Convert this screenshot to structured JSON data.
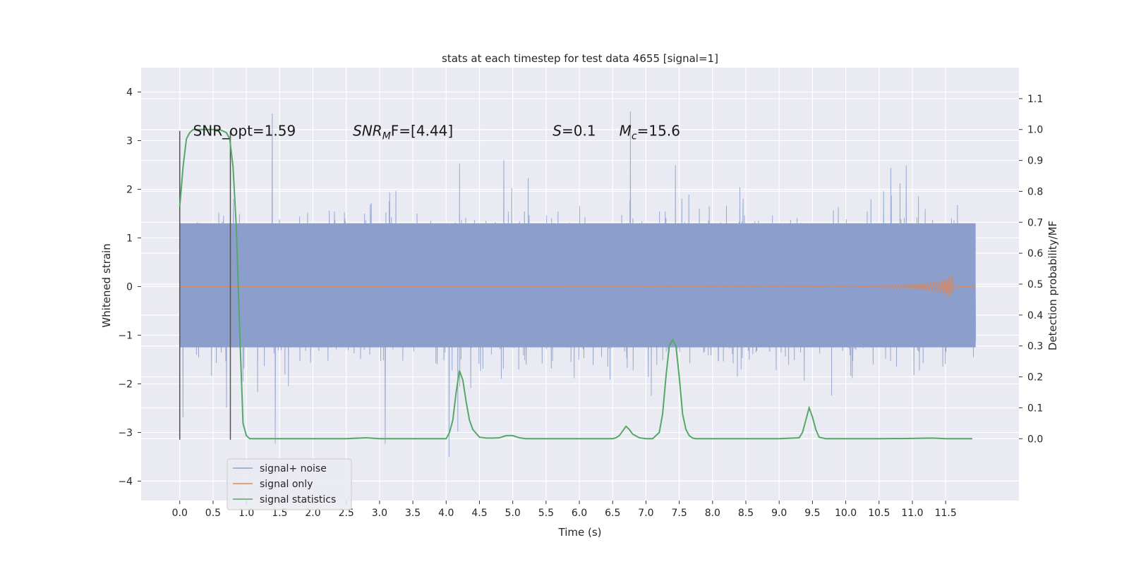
{
  "chart_data": {
    "type": "line",
    "title": "stats at each timestep for test data 4655 [signal=1]",
    "xlabel": "Time (s)",
    "ylabel_left": "Whitened strain",
    "ylabel_right": "Detection probability/MF",
    "xlim": [
      -0.58,
      12.6
    ],
    "ylim_left": [
      -4.4,
      4.5
    ],
    "ylim_right": [
      -0.2,
      1.2
    ],
    "x_ticks": [
      0.0,
      0.5,
      1.0,
      1.5,
      2.0,
      2.5,
      3.0,
      3.5,
      4.0,
      4.5,
      5.0,
      5.5,
      6.0,
      6.5,
      7.0,
      7.5,
      8.0,
      8.5,
      9.0,
      9.5,
      10.0,
      10.5,
      11.0,
      11.5
    ],
    "x_tick_labels": [
      "0.0",
      "0.5",
      "1.0",
      "1.5",
      "2.0",
      "2.5",
      "3.0",
      "3.5",
      "4.0",
      "4.5",
      "5.0",
      "5.5",
      "6.0",
      "6.5",
      "7.0",
      "7.5",
      "8.0",
      "8.5",
      "9.0",
      "9.5",
      "10.0",
      "10.5",
      "11.0",
      "11.5"
    ],
    "y_left_ticks": [
      -4,
      -3,
      -2,
      -1,
      0,
      1,
      2,
      3,
      4
    ],
    "y_left_tick_labels": [
      "−4",
      "−3",
      "−2",
      "−1",
      "0",
      "1",
      "2",
      "3",
      "4"
    ],
    "y_right_ticks": [
      0.0,
      0.1,
      0.2,
      0.3,
      0.4,
      0.5,
      0.6,
      0.7,
      0.8,
      0.9,
      1.0,
      1.1
    ],
    "y_right_tick_labels": [
      "0.0",
      "0.1",
      "0.2",
      "0.3",
      "0.4",
      "0.5",
      "0.6",
      "0.7",
      "0.8",
      "0.9",
      "1.0",
      "1.1"
    ],
    "grid": true,
    "legend_position": "lower-left",
    "annotations": {
      "snr_opt": "SNR_opt=1.59",
      "snr_mf_sym": "SNR",
      "snr_mf_sub": "M",
      "snr_mf_rest": "F=[4.44]",
      "s_sym": "S",
      "s_rest": "=0.1",
      "mc_sym": "M",
      "mc_sub": "c",
      "mc_rest": "=15.6"
    },
    "annotation_x": [
      0.2,
      2.6,
      5.6,
      6.6
    ],
    "annotation_y": 3.2,
    "vertical_markers": [
      {
        "x": 0.0,
        "y_top": 3.2,
        "y_bottom": -3.15
      },
      {
        "x": 0.76,
        "y_top": 3.2,
        "y_bottom": -3.15
      }
    ],
    "series": [
      {
        "name": "signal+ noise",
        "axis": "left",
        "color": "#8c9fcc",
        "x_range": [
          0.0,
          11.95
        ],
        "band_lower": -1.25,
        "band_upper": 1.3,
        "description_values": {
          "typical_peak_max": 3.2,
          "typical_peak_min": -3.0
        }
      },
      {
        "name": "signal only",
        "axis": "left",
        "color": "#dd8452",
        "x": [
          0.0,
          10.0,
          10.5,
          11.0,
          11.3,
          11.5,
          11.6,
          11.62,
          11.65,
          11.95
        ],
        "y_envelope": [
          0.0,
          0.01,
          0.02,
          0.04,
          0.08,
          0.15,
          0.25,
          0.0,
          0.0,
          0.0
        ]
      },
      {
        "name": "signal statistics",
        "axis": "right",
        "color": "#55a868",
        "x": [
          0.0,
          0.05,
          0.1,
          0.15,
          0.2,
          0.3,
          0.4,
          0.5,
          0.6,
          0.65,
          0.7,
          0.75,
          0.8,
          0.85,
          0.9,
          0.95,
          1.0,
          1.05,
          1.1,
          1.5,
          2.0,
          2.5,
          2.8,
          3.0,
          3.5,
          4.0,
          4.05,
          4.1,
          4.15,
          4.2,
          4.25,
          4.3,
          4.35,
          4.4,
          4.5,
          4.6,
          4.7,
          4.8,
          4.9,
          5.0,
          5.1,
          5.2,
          5.5,
          6.0,
          6.5,
          6.55,
          6.6,
          6.65,
          6.7,
          6.75,
          6.8,
          6.9,
          7.0,
          7.1,
          7.2,
          7.25,
          7.3,
          7.35,
          7.4,
          7.45,
          7.5,
          7.55,
          7.6,
          7.65,
          7.7,
          7.75,
          7.8,
          7.9,
          8.0,
          9.0,
          9.3,
          9.35,
          9.4,
          9.45,
          9.5,
          9.55,
          9.6,
          9.7,
          10.0,
          10.5,
          11.0,
          11.3,
          11.5,
          11.9
        ],
        "values": [
          0.75,
          0.88,
          0.97,
          0.99,
          1.0,
          1.0,
          1.0,
          1.0,
          1.0,
          0.995,
          0.99,
          0.97,
          0.88,
          0.68,
          0.35,
          0.05,
          0.01,
          0.0,
          0.0,
          0.0,
          0.0,
          0.0,
          0.003,
          0.0,
          0.0,
          0.0,
          0.02,
          0.06,
          0.15,
          0.22,
          0.19,
          0.12,
          0.06,
          0.03,
          0.005,
          0.002,
          0.002,
          0.003,
          0.01,
          0.01,
          0.003,
          0.0,
          0.0,
          0.0,
          0.0,
          0.003,
          0.01,
          0.025,
          0.04,
          0.03,
          0.015,
          0.003,
          0.0,
          0.0,
          0.02,
          0.08,
          0.2,
          0.3,
          0.32,
          0.3,
          0.2,
          0.08,
          0.03,
          0.01,
          0.002,
          0.0,
          0.0,
          0.0,
          0.0,
          0.0,
          0.003,
          0.02,
          0.06,
          0.1,
          0.07,
          0.03,
          0.005,
          0.0,
          0.0,
          0.0,
          0.001,
          0.002,
          0.0,
          0.0
        ]
      }
    ]
  }
}
